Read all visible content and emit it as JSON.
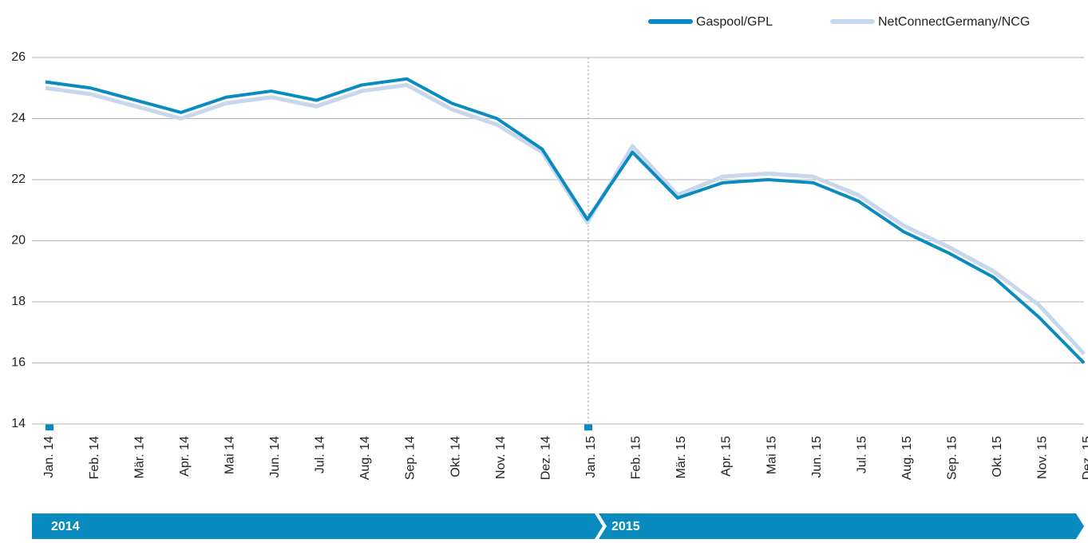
{
  "chart_data": {
    "type": "line",
    "categories": [
      "Jan. 14",
      "Feb. 14",
      "Mär. 14",
      "Apr. 14",
      "Mai 14",
      "Jun. 14",
      "Jul. 14",
      "Aug. 14",
      "Sep. 14",
      "Okt. 14",
      "Nov. 14",
      "Dez. 14",
      "Jan. 15",
      "Feb. 15",
      "Mär. 15",
      "Apr. 15",
      "Mai 15",
      "Jun. 15",
      "Jul. 15",
      "Aug. 15",
      "Sep. 15",
      "Okt. 15",
      "Nov. 15",
      "Dez. 15"
    ],
    "series": [
      {
        "name": "NetConnectGermany/NCG",
        "color": "#c8d7ec",
        "values": [
          25.0,
          24.8,
          24.4,
          24.0,
          24.5,
          24.7,
          24.4,
          24.9,
          25.1,
          24.3,
          23.8,
          22.9,
          20.6,
          23.1,
          21.5,
          22.1,
          22.2,
          22.1,
          21.5,
          20.5,
          19.8,
          19.0,
          17.9,
          16.3
        ]
      },
      {
        "name": "Gaspool/GPL",
        "color": "#0a8bc0",
        "values": [
          25.2,
          25.0,
          24.6,
          24.2,
          24.7,
          24.9,
          24.6,
          25.1,
          25.3,
          24.5,
          24.0,
          23.0,
          20.7,
          22.9,
          21.4,
          21.9,
          22.0,
          21.9,
          21.3,
          20.3,
          19.6,
          18.8,
          17.5,
          16.0
        ]
      }
    ],
    "ylim": [
      14,
      26
    ],
    "yticks": [
      14,
      16,
      18,
      20,
      22,
      24,
      26
    ],
    "grid": true,
    "years": [
      "2014",
      "2015"
    ]
  }
}
